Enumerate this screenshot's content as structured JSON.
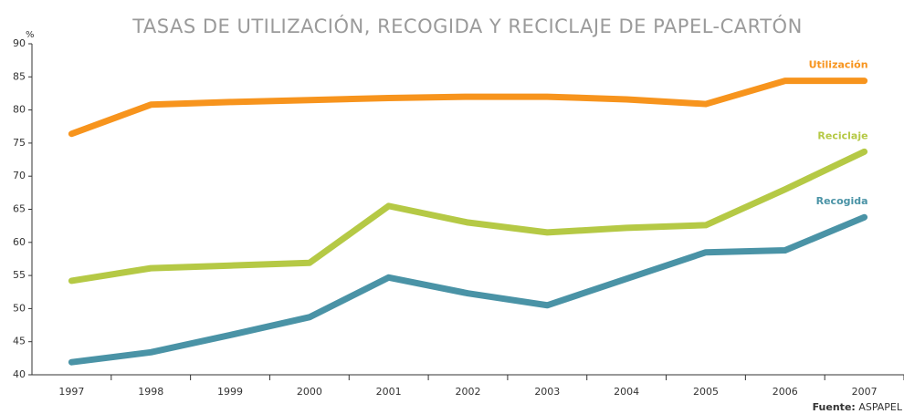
{
  "chart_data": {
    "type": "line",
    "title": "TASAS DE UTILIZACIÓN, RECOGIDA Y RECICLAJE DE PAPEL-CARTÓN",
    "y_unit": "%",
    "source_label": "Fuente:",
    "source": "ASPAPEL",
    "categories": [
      "1997",
      "1998",
      "1999",
      "2000",
      "2001",
      "2002",
      "2003",
      "2004",
      "2005",
      "2006",
      "2007"
    ],
    "series": [
      {
        "name": "Utilización",
        "color": "#f7941d",
        "values": [
          76.4,
          80.8,
          81.2,
          81.5,
          81.8,
          82,
          82,
          81.6,
          80.9,
          84.4,
          84.4
        ]
      },
      {
        "name": "Reciclaje",
        "color": "#b5c945",
        "values": [
          54.2,
          56.1,
          56.5,
          56.9,
          65.5,
          63,
          61.5,
          62.2,
          62.6,
          68,
          73.7
        ]
      },
      {
        "name": "Recogida",
        "color": "#4a93a6",
        "values": [
          41.9,
          43.4,
          46,
          48.7,
          54.7,
          52.3,
          50.5,
          54.5,
          58.5,
          58.8,
          63.8
        ]
      }
    ],
    "ylim": [
      40,
      90
    ],
    "yticks": [
      40,
      45,
      50,
      55,
      60,
      65,
      70,
      75,
      80,
      85,
      90
    ],
    "grid": false
  }
}
